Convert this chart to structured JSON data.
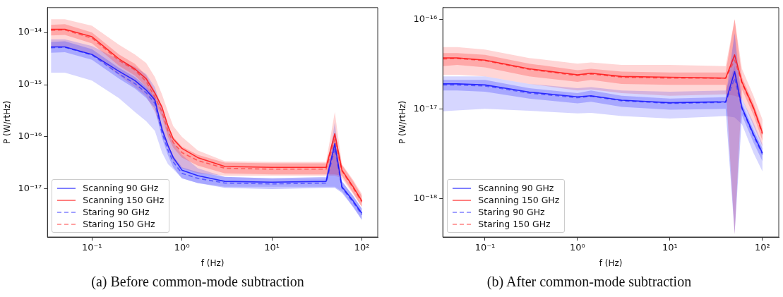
{
  "chart_data": [
    {
      "type": "line",
      "title": "(a) Before common-mode subtraction",
      "xlabel": "f (Hz)",
      "ylabel": "P (W/rtHz)",
      "log": "xy",
      "legend": "bottom left",
      "grid": false,
      "x": [
        0.035,
        0.05,
        0.1,
        0.2,
        0.3,
        0.4,
        0.5,
        0.6,
        0.7,
        0.8,
        1,
        1.5,
        3,
        10,
        40,
        50,
        60,
        80,
        100
      ],
      "xlim": [
        0.032,
        150
      ],
      "ylim": [
        1.2e-18,
        3e-14
      ],
      "xticks": [
        {
          "value": 0.1,
          "label": "10⁻¹"
        },
        {
          "value": 1,
          "label": "10⁰"
        },
        {
          "value": 10,
          "label": "10¹"
        },
        {
          "value": 100,
          "label": "10²"
        }
      ],
      "yticks": [
        {
          "value": 1e-17,
          "label": "10⁻¹⁷"
        },
        {
          "value": 1e-16,
          "label": "10⁻¹⁶"
        },
        {
          "value": 1e-15,
          "label": "10⁻¹⁵"
        },
        {
          "value": 1e-14,
          "label": "10⁻¹⁴"
        }
      ],
      "series": [
        {
          "name": "Scanning 90 GHz",
          "color": "#0000ff",
          "line_style": "solid",
          "values": [
            5.3e-15,
            5.3e-15,
            3.8e-15,
            1.8e-15,
            1.2e-15,
            7.9e-16,
            5.1e-16,
            1.4e-16,
            6.8e-17,
            4e-17,
            2.3e-17,
            1.8e-17,
            1.4e-17,
            1.35e-17,
            1.4e-17,
            7.4e-17,
            1.1e-17,
            5.9e-18,
            3.4e-18
          ],
          "lower": [
            1.7e-15,
            1.7e-15,
            1.2e-15,
            5.5e-16,
            3e-16,
            2e-16,
            1.3e-16,
            5e-17,
            3e-17,
            2.4e-17,
            1.6e-17,
            1.3e-17,
            1.1e-17,
            1.1e-17,
            1.1e-17,
            1.1e-17,
            9e-18,
            4.5e-18,
            2.5e-18
          ],
          "upper": [
            7.4e-15,
            7.4e-15,
            5.5e-15,
            3e-15,
            2.2e-15,
            1.6e-15,
            9e-16,
            3.5e-16,
            1.5e-16,
            8e-17,
            4.5e-17,
            2.5e-17,
            1.7e-17,
            1.6e-17,
            1.6e-17,
            1.9e-16,
            1.4e-17,
            7.5e-18,
            4.2e-18
          ]
        },
        {
          "name": "Scanning 150 GHz",
          "color": "#ff0000",
          "line_style": "solid",
          "values": [
            1.15e-14,
            1.15e-14,
            8.3e-15,
            3.1e-15,
            2e-15,
            1.3e-15,
            6.9e-16,
            3.7e-16,
            1.6e-16,
            9.1e-17,
            6e-17,
            4e-17,
            2.7e-17,
            2.6e-17,
            2.6e-17,
            1.15e-16,
            2.3e-17,
            1.1e-17,
            5.9e-18
          ],
          "lower": [
            5.3e-15,
            5.3e-15,
            3.8e-15,
            1.5e-15,
            9e-16,
            6e-16,
            3e-16,
            1.3e-16,
            6e-17,
            3.5e-17,
            2.5e-17,
            2e-17,
            1.8e-17,
            1.8e-17,
            1.8e-17,
            1.8e-17,
            1.6e-17,
            8e-18,
            4.5e-18
          ],
          "upper": [
            1.8e-14,
            1.8e-14,
            1.35e-14,
            5.8e-15,
            3.8e-15,
            2.6e-15,
            1.4e-15,
            6.5e-16,
            3e-16,
            1.6e-16,
            1e-16,
            5.5e-17,
            3.4e-17,
            3.3e-17,
            3.3e-17,
            3e-16,
            3e-17,
            1.5e-17,
            8e-18
          ]
        },
        {
          "name": "Staring 90 GHz",
          "color": "#4040ff",
          "line_style": "dashed",
          "values": [
            5.1e-15,
            5.2e-15,
            3.7e-15,
            1.6e-15,
            1.05e-15,
            7e-16,
            4.4e-16,
            1.2e-16,
            5.5e-17,
            3.3e-17,
            2e-17,
            1.6e-17,
            1.3e-17,
            1.25e-17,
            1.3e-17,
            6e-17,
            1.05e-17,
            5.6e-18,
            3.2e-18
          ],
          "lower": [
            4.1e-15,
            4.2e-15,
            3e-15,
            1.3e-15,
            8.4e-16,
            5.6e-16,
            3.5e-16,
            9.6e-17,
            4.4e-17,
            2.6e-17,
            1.6e-17,
            1.3e-17,
            1.05e-17,
            1e-17,
            1.05e-17,
            1.05e-17,
            8.5e-18,
            4.5e-18,
            2.6e-18
          ],
          "upper": [
            6.6e-15,
            6.8e-15,
            4.8e-15,
            2.1e-15,
            1.4e-15,
            9.1e-16,
            5.7e-16,
            1.6e-16,
            7.2e-17,
            4.3e-17,
            2.6e-17,
            2.1e-17,
            1.7e-17,
            1.6e-17,
            1.7e-17,
            7.8e-17,
            1.4e-17,
            7.3e-18,
            4.2e-18
          ]
        },
        {
          "name": "Staring 150 GHz",
          "color": "#ff4040",
          "line_style": "dashed",
          "values": [
            1.1e-14,
            1.12e-14,
            7.8e-15,
            2.9e-15,
            1.9e-15,
            1.15e-15,
            5.8e-16,
            3e-16,
            1.3e-16,
            7.8e-17,
            5e-17,
            3.5e-17,
            2.5e-17,
            2.4e-17,
            2.4e-17,
            9e-17,
            2.2e-17,
            1.05e-17,
            5.6e-18
          ],
          "lower": [
            8.8e-15,
            9e-15,
            6.2e-15,
            2.3e-15,
            1.5e-15,
            9.2e-16,
            4.6e-16,
            2.4e-16,
            1e-16,
            6.2e-17,
            4e-17,
            2.8e-17,
            2e-17,
            1.9e-17,
            1.9e-17,
            1.9e-17,
            1.8e-17,
            8.4e-18,
            4.5e-18
          ],
          "upper": [
            1.4e-14,
            1.45e-14,
            1e-14,
            3.8e-15,
            2.5e-15,
            1.5e-15,
            7.5e-16,
            3.9e-16,
            1.7e-16,
            1e-16,
            6.5e-17,
            4.5e-17,
            3.2e-17,
            3.1e-17,
            3.1e-17,
            1.2e-16,
            2.9e-17,
            1.4e-17,
            7.3e-18
          ]
        }
      ]
    },
    {
      "type": "line",
      "title": "(b) After common-mode subtraction",
      "xlabel": "f (Hz)",
      "ylabel": "P (W/rtHz)",
      "log": "xy",
      "legend": "bottom left",
      "grid": false,
      "x": [
        0.035,
        0.05,
        0.1,
        0.3,
        1,
        1.4,
        3,
        10,
        40,
        50,
        60,
        80,
        100
      ],
      "xlim": [
        0.035,
        150
      ],
      "ylim": [
        3.7e-19,
        1.35e-16
      ],
      "xticks": [
        {
          "value": 0.1,
          "label": "10⁻¹"
        },
        {
          "value": 1,
          "label": "10⁰"
        },
        {
          "value": 10,
          "label": "10¹"
        },
        {
          "value": 100,
          "label": "10²"
        }
      ],
      "yticks": [
        {
          "value": 1e-18,
          "label": "10⁻¹⁸"
        },
        {
          "value": 1e-17,
          "label": "10⁻¹⁷"
        },
        {
          "value": 1e-16,
          "label": "10⁻¹⁶"
        }
      ],
      "series": [
        {
          "name": "Scanning 90 GHz",
          "color": "#0000ff",
          "line_style": "solid",
          "values": [
            1.9e-17,
            1.9e-17,
            1.85e-17,
            1.54e-17,
            1.36e-17,
            1.4e-17,
            1.25e-17,
            1.17e-17,
            1.2e-17,
            2.6e-17,
            1.03e-17,
            5.2e-18,
            3.2e-18
          ],
          "lower": [
            9.4e-18,
            9.6e-18,
            1e-17,
            9.5e-18,
            8.9e-18,
            9e-18,
            8.3e-18,
            7.8e-18,
            8.3e-18,
            8e-18,
            6.7e-18,
            3.2e-18,
            2e-18
          ],
          "upper": [
            2.3e-17,
            2.3e-17,
            2.3e-17,
            1.9e-17,
            1.7e-17,
            1.75e-17,
            1.6e-17,
            1.55e-17,
            1.6e-17,
            3e-17,
            1.3e-17,
            7e-18,
            4e-18
          ]
        },
        {
          "name": "Scanning 150 GHz",
          "color": "#ff0000",
          "line_style": "solid",
          "values": [
            3.7e-17,
            3.7e-17,
            3.5e-17,
            2.8e-17,
            2.4e-17,
            2.5e-17,
            2.3e-17,
            2.25e-17,
            2.2e-17,
            4e-17,
            2e-17,
            1.03e-17,
            5.4e-18
          ],
          "lower": [
            2.4e-17,
            2.4e-17,
            2.3e-17,
            1.9e-17,
            1.6e-17,
            1.65e-17,
            1.5e-17,
            1.4e-17,
            1.45e-17,
            1.4e-17,
            1.3e-17,
            6.5e-18,
            3.8e-18
          ],
          "upper": [
            4.9e-17,
            4.9e-17,
            4.6e-17,
            3.7e-17,
            3.2e-17,
            3.3e-17,
            3.1e-17,
            3.1e-17,
            3e-17,
            1e-16,
            2.8e-17,
            1.4e-17,
            7.6e-18
          ]
        },
        {
          "name": "Staring 90 GHz",
          "color": "#4040ff",
          "line_style": "dashed",
          "values": [
            1.85e-17,
            1.85e-17,
            1.8e-17,
            1.5e-17,
            1.33e-17,
            1.38e-17,
            1.23e-17,
            1.15e-17,
            1.18e-17,
            2.2e-17,
            1e-17,
            5e-18,
            3.1e-18
          ],
          "lower": [
            1.6e-17,
            1.6e-17,
            1.55e-17,
            1.3e-17,
            1.15e-17,
            1.2e-17,
            1.05e-17,
            9.8e-18,
            1e-17,
            4e-19,
            8.5e-18,
            4.2e-18,
            2.6e-18
          ],
          "upper": [
            2.1e-17,
            2.1e-17,
            2.1e-17,
            1.7e-17,
            1.5e-17,
            1.6e-17,
            1.4e-17,
            1.3e-17,
            1.35e-17,
            7e-17,
            1.15e-17,
            5.8e-18,
            3.6e-18
          ]
        },
        {
          "name": "Staring 150 GHz",
          "color": "#ff4040",
          "line_style": "dashed",
          "values": [
            3.6e-17,
            3.65e-17,
            3.45e-17,
            2.75e-17,
            2.35e-17,
            2.45e-17,
            2.25e-17,
            2.2e-17,
            2.2e-17,
            3.5e-17,
            1.95e-17,
            1e-17,
            5.2e-18
          ],
          "lower": [
            3e-17,
            3.1e-17,
            2.9e-17,
            2.3e-17,
            2e-17,
            2.1e-17,
            1.9e-17,
            1.85e-17,
            1.85e-17,
            4e-19,
            1.65e-17,
            8.5e-18,
            4.4e-18
          ],
          "upper": [
            4.2e-17,
            4.2e-17,
            4e-17,
            3.2e-17,
            2.7e-17,
            2.8e-17,
            2.6e-17,
            2.55e-17,
            2.55e-17,
            1e-16,
            2.25e-17,
            1.15e-17,
            6e-18
          ]
        }
      ]
    }
  ]
}
